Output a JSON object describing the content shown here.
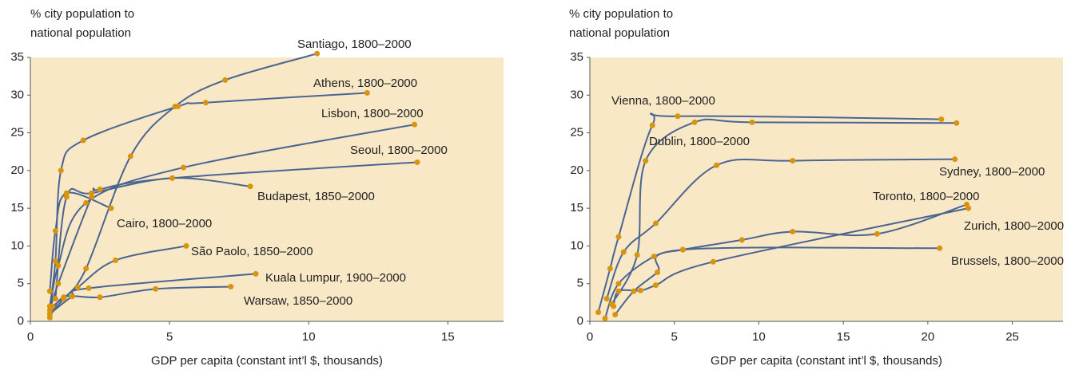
{
  "chart_data": [
    {
      "type": "line",
      "ylabel": [
        "% city population to",
        "national population"
      ],
      "xlabel": "GDP per capita (constant int’l $, thousands)",
      "xlim": [
        0,
        17
      ],
      "ylim": [
        0,
        35
      ],
      "xticks": [
        0,
        5,
        10,
        15
      ],
      "yticks": [
        0,
        5,
        10,
        15,
        20,
        25,
        30,
        35
      ],
      "line_color": "#4a6591",
      "marker_color": "#d8940c",
      "background": "#f8e8c6",
      "series": [
        {
          "name": "Santiago, 1800–2000",
          "x": [
            0.7,
            1.2,
            2,
            3.6,
            5.2,
            7,
            10.3
          ],
          "values": [
            1,
            3,
            7,
            21.9,
            28.5,
            32,
            35.5
          ]
        },
        {
          "name": "Athens, 1800–2000",
          "x": [
            0.7,
            0.9,
            1.1,
            1.9,
            5.3,
            6.3,
            12.1
          ],
          "values": [
            2,
            8,
            20,
            24,
            28.5,
            29,
            30.3
          ]
        },
        {
          "name": "Lisbon, 1800–2000",
          "x": [
            0.7,
            1,
            2,
            5.5,
            13.8
          ],
          "values": [
            1,
            7.4,
            15.7,
            20.4,
            26.1
          ]
        },
        {
          "name": "Seoul, 1800–2000",
          "x": [
            0.7,
            1,
            2.2,
            2.5,
            5.1,
            13.9
          ],
          "values": [
            1.5,
            5,
            16.5,
            17.5,
            19,
            21.1
          ]
        },
        {
          "name": "Budapest, 1850–2000",
          "x": [
            0.9,
            1.3,
            2.2,
            5.1,
            7.9
          ],
          "values": [
            3,
            16.5,
            17,
            19,
            17.9
          ]
        },
        {
          "name": "Cairo, 1800–2000",
          "x": [
            0.7,
            0.9,
            1.3,
            2.9
          ],
          "values": [
            4,
            12,
            17,
            15
          ]
        },
        {
          "name": "São Paolo, 1850–2000",
          "x": [
            0.8,
            1.7,
            3.06,
            5.6
          ],
          "values": [
            2,
            4.5,
            8.1,
            10
          ]
        },
        {
          "name": "Kuala Lumpur, 1900–2000",
          "x": [
            0.7,
            1.5,
            2.1,
            8.1
          ],
          "values": [
            1,
            3.3,
            4.4,
            6.3
          ]
        },
        {
          "name": "Warsaw, 1850–2000",
          "x": [
            0.7,
            1.2,
            2.5,
            4.5,
            7.2
          ],
          "values": [
            0.5,
            3.2,
            3.2,
            4.3,
            4.6
          ]
        }
      ]
    },
    {
      "type": "line",
      "ylabel": [
        "% city population to",
        "national population"
      ],
      "xlabel": "GDP per capita (constant int’l $, thousands)",
      "xlim": [
        0,
        28
      ],
      "ylim": [
        0,
        35
      ],
      "xticks": [
        0,
        5,
        10,
        15,
        20,
        25
      ],
      "yticks": [
        0,
        5,
        10,
        15,
        20,
        25,
        30,
        35
      ],
      "line_color": "#4a6591",
      "marker_color": "#d8940c",
      "background": "#f8e8c6",
      "series": [
        {
          "name": "Vienna, 1800–2000",
          "x": [
            0.5,
            1.2,
            1.7,
            3.7,
            5.2,
            20.8
          ],
          "values": [
            1.2,
            7,
            11.2,
            26,
            27.2,
            26.8
          ]
        },
        {
          "name": "Dublin, 1800–2000",
          "x": [
            1.3,
            2.8,
            3.3,
            6.2,
            9.6,
            21.7
          ],
          "values": [
            2.3,
            8.8,
            21.3,
            26.4,
            26.4,
            26.3
          ]
        },
        {
          "name": "Sydney, 1800–2000",
          "x": [
            1,
            2,
            3.9,
            7.5,
            12,
            21.6
          ],
          "values": [
            3,
            9.2,
            13,
            20.7,
            21.3,
            21.5
          ]
        },
        {
          "name": "Toronto, 1800–2000",
          "x": [
            0.9,
            1.7,
            3.8,
            5.5,
            9,
            12,
            17,
            22.3
          ],
          "values": [
            0.4,
            5,
            8.6,
            9.5,
            10.8,
            11.9,
            11.6,
            15.5
          ]
        },
        {
          "name": "Zurich, 1800–2000",
          "x": [
            1.4,
            1.7,
            3,
            3.9,
            7.3,
            22.4
          ],
          "values": [
            2,
            4,
            4.1,
            4.8,
            7.9,
            15
          ]
        },
        {
          "name": "Brussels, 1800–2000",
          "x": [
            1.5,
            2.6,
            4,
            5.5,
            20.7
          ],
          "values": [
            0.9,
            4,
            6.5,
            9.5,
            9.7
          ]
        }
      ]
    }
  ]
}
